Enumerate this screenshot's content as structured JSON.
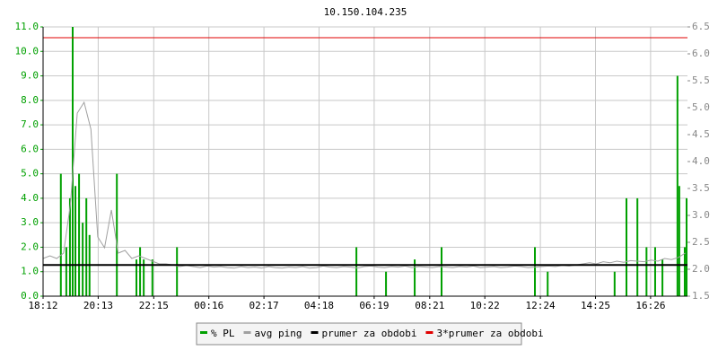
{
  "chart_data": {
    "type": "line",
    "title": "10.150.104.235",
    "x": [
      0,
      15,
      30,
      45,
      60,
      75,
      90,
      105,
      120,
      135,
      150,
      165,
      180,
      195,
      210,
      225,
      240,
      255,
      270,
      285,
      300,
      315,
      330,
      345,
      360,
      375,
      390,
      405,
      420,
      435,
      450,
      465,
      480,
      495,
      510,
      525,
      540,
      555,
      570,
      585,
      600,
      615,
      630,
      645,
      660,
      675,
      690,
      705,
      720,
      735,
      750,
      765,
      780,
      795,
      810,
      825,
      840,
      855,
      870,
      885,
      900,
      915,
      930,
      945,
      960,
      975,
      990,
      1005,
      1020,
      1035,
      1050,
      1065,
      1080,
      1095,
      1110,
      1125,
      1140,
      1155,
      1170,
      1185,
      1200,
      1215,
      1230,
      1245,
      1260,
      1275,
      1290,
      1305,
      1320,
      1335,
      1350,
      1365,
      1380,
      1395,
      1410
    ],
    "xlim": [
      0,
      1415
    ],
    "xticks": [
      {
        "value": 0,
        "label": "18:12"
      },
      {
        "value": 121,
        "label": "20:13"
      },
      {
        "value": 243,
        "label": "22:15"
      },
      {
        "value": 364,
        "label": "00:16"
      },
      {
        "value": 485,
        "label": "02:17"
      },
      {
        "value": 606,
        "label": "04:18"
      },
      {
        "value": 727,
        "label": "06:19"
      },
      {
        "value": 849,
        "label": "08:21"
      },
      {
        "value": 970,
        "label": "10:22"
      },
      {
        "value": 1092,
        "label": "12:24"
      },
      {
        "value": 1213,
        "label": "14:25"
      },
      {
        "value": 1334,
        "label": "16:26"
      }
    ],
    "ylim": [
      0,
      11
    ],
    "yticks": [
      {
        "value": 0,
        "label": "0.0"
      },
      {
        "value": 1,
        "label": "1.0"
      },
      {
        "value": 2,
        "label": "2.0"
      },
      {
        "value": 3,
        "label": "3.0"
      },
      {
        "value": 4,
        "label": "4.0"
      },
      {
        "value": 5,
        "label": "5.0"
      },
      {
        "value": 6,
        "label": "6.0"
      },
      {
        "value": 7,
        "label": "7.0"
      },
      {
        "value": 8,
        "label": "8.0"
      },
      {
        "value": 9,
        "label": "9.0"
      },
      {
        "value": 10,
        "label": "10.0"
      },
      {
        "value": 11,
        "label": "11.0"
      }
    ],
    "y2lim": [
      1.5,
      6.5
    ],
    "y2ticks": [
      1.5,
      {
        "value": 2,
        "label": "2.0"
      },
      2.5,
      {
        "value": 3,
        "label": "3.0"
      },
      3.5,
      {
        "value": 4,
        "label": "4.0"
      },
      4.5,
      {
        "value": 5,
        "label": "5.0"
      },
      5.5,
      {
        "value": 6,
        "label": "6.0"
      },
      6.5
    ],
    "grid": true,
    "series": [
      {
        "name": "% PL",
        "color": "#00a000",
        "type": "bar",
        "x": [
          39,
          51,
          59,
          65,
          71,
          79,
          87,
          95,
          102,
          162,
          205,
          213,
          221,
          240,
          294,
          688,
          753,
          816,
          875,
          1080,
          1108,
          1255,
          1281,
          1305,
          1325,
          1344,
          1360,
          1393,
          1397,
          1409,
          1413
        ],
        "values": [
          5.0,
          2.0,
          4.0,
          11.0,
          4.5,
          5.0,
          3.0,
          4.0,
          2.5,
          5.0,
          1.5,
          2.0,
          1.5,
          1.5,
          2.0,
          2.0,
          1.0,
          1.5,
          2.0,
          2.0,
          1.0,
          1.0,
          4.0,
          4.0,
          2.0,
          2.0,
          1.5,
          9.0,
          4.5,
          2.0,
          4.0
        ]
      },
      {
        "name": "avg ping",
        "color": "#a0a0a0",
        "axis": "y2",
        "values": [
          2.2,
          2.25,
          2.2,
          2.3,
          3.2,
          4.9,
          5.1,
          4.6,
          2.6,
          2.4,
          3.1,
          2.3,
          2.35,
          2.2,
          2.25,
          2.2,
          2.15,
          2.1,
          2.1,
          2.08,
          2.05,
          2.07,
          2.05,
          2.03,
          2.06,
          2.04,
          2.05,
          2.03,
          2.02,
          2.05,
          2.03,
          2.04,
          2.02,
          2.05,
          2.03,
          2.02,
          2.04,
          2.03,
          2.05,
          2.02,
          2.03,
          2.06,
          2.04,
          2.03,
          2.05,
          2.04,
          2.02,
          2.05,
          2.06,
          2.04,
          2.03,
          2.05,
          2.04,
          2.06,
          2.03,
          2.05,
          2.04,
          2.03,
          2.05,
          2.04,
          2.03,
          2.05,
          2.04,
          2.06,
          2.03,
          2.04,
          2.05,
          2.03,
          2.04,
          2.06,
          2.05,
          2.03,
          2.04,
          2.05,
          2.06,
          2.05,
          2.07,
          2.06,
          2.08,
          2.1,
          2.12,
          2.1,
          2.14,
          2.12,
          2.15,
          2.13,
          2.16,
          2.15,
          2.14,
          2.17,
          2.15,
          2.2,
          2.18,
          2.22,
          2.3
        ]
      },
      {
        "name": "prumer za obdobi",
        "color": "#000000",
        "axis": "y2",
        "value": 2.08
      },
      {
        "name": "3*prumer za obdobi",
        "color": "#e00000",
        "axis": "y2",
        "value": 6.3
      }
    ]
  }
}
